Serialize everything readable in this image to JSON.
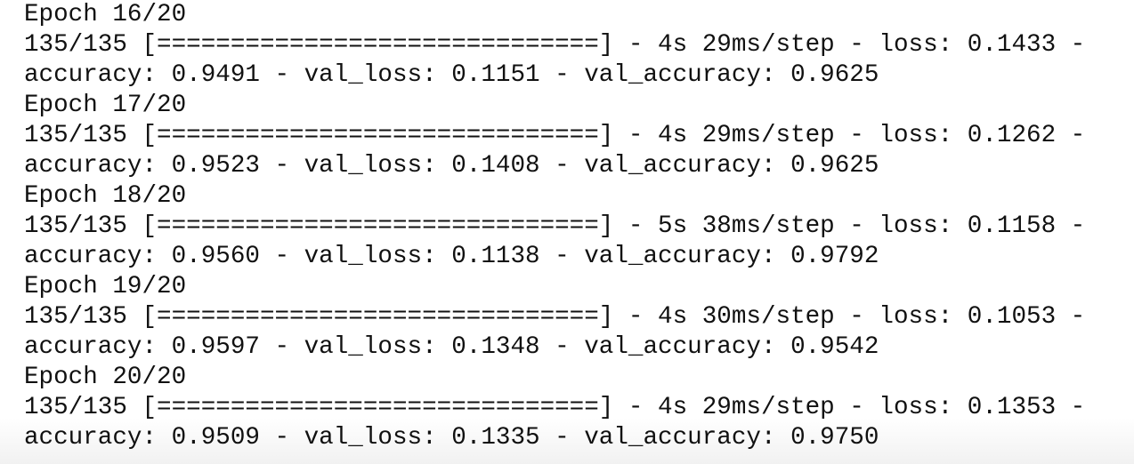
{
  "log": {
    "lines": [
      "Epoch 16/20",
      "135/135 [==============================] - 4s 29ms/step - loss: 0.1433 -",
      "accuracy: 0.9491 - val_loss: 0.1151 - val_accuracy: 0.9625",
      "Epoch 17/20",
      "135/135 [==============================] - 4s 29ms/step - loss: 0.1262 -",
      "accuracy: 0.9523 - val_loss: 0.1408 - val_accuracy: 0.9625",
      "Epoch 18/20",
      "135/135 [==============================] - 5s 38ms/step - loss: 0.1158 -",
      "accuracy: 0.9560 - val_loss: 0.1138 - val_accuracy: 0.9792",
      "Epoch 19/20",
      "135/135 [==============================] - 4s 30ms/step - loss: 0.1053 -",
      "accuracy: 0.9597 - val_loss: 0.1348 - val_accuracy: 0.9542",
      "Epoch 20/20",
      "135/135 [==============================] - 4s 29ms/step - loss: 0.1353 -",
      "accuracy: 0.9509 - val_loss: 0.1335 - val_accuracy: 0.9750"
    ]
  }
}
